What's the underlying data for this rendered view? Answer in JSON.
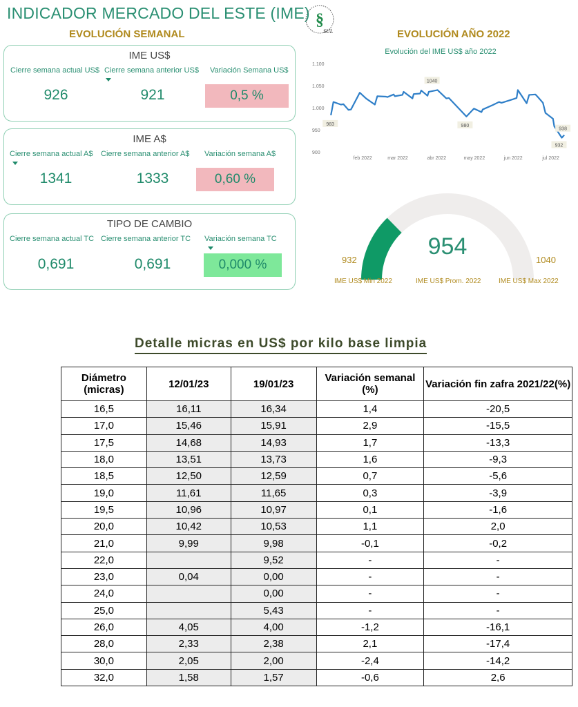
{
  "header": {
    "title": "INDICADOR MERCADO DEL ESTE (IME)",
    "weekly": "EVOLUCIÓN SEMANAL",
    "yearly": "EVOLUCIÓN AÑO  2022",
    "logo_text": "SUL"
  },
  "cards": [
    {
      "title": "IME US$",
      "labels": [
        "Cierre semana actual US$",
        "Cierre semana anterior US$",
        "Variación Semana US$"
      ],
      "current": "926",
      "previous": "921",
      "variation": "0,5 %",
      "var_color": "#f2b8bd"
    },
    {
      "title": "IME A$",
      "labels": [
        "Cierre semana actual A$",
        "Cierre semana anterior A$",
        "Variación semana A$"
      ],
      "current": "1341",
      "previous": "1333",
      "variation": "0,60 %",
      "var_color": "#f2b8bd"
    },
    {
      "title": "TIPO DE CAMBIO",
      "labels": [
        "Cierre semana actual TC",
        "Cierre semana anterior TC",
        "Variación semana TC"
      ],
      "current": "0,691",
      "previous": "0,691",
      "variation": "0,000 %",
      "var_color": "#7ee89a"
    }
  ],
  "chart_data": {
    "type": "line",
    "title": "Evolución del IME US$ año 2022",
    "ylim": [
      900,
      1100
    ],
    "yticks": [
      "900",
      "950",
      "1.000",
      "1.050",
      "1.100"
    ],
    "ytick_values": [
      900,
      950,
      1000,
      1050,
      1100
    ],
    "xticks": [
      "feb 2022",
      "mar 2022",
      "abr 2022",
      "may 2022",
      "jun 2022",
      "jul 2022"
    ],
    "xtick_days": [
      32,
      60,
      91,
      121,
      152,
      182
    ],
    "x_days": [
      10,
      12,
      18,
      20,
      24,
      26,
      33,
      38,
      45,
      47,
      54,
      55,
      60,
      61,
      67,
      68,
      75,
      76,
      81,
      82,
      87,
      88,
      95,
      102,
      104,
      118,
      124,
      130,
      131,
      139,
      144,
      146,
      155,
      158,
      159,
      166,
      168,
      173,
      175,
      179,
      181,
      187,
      188,
      194,
      196
    ],
    "y": [
      983,
      1013,
      1007,
      1008,
      995,
      996,
      1034,
      1021,
      1007,
      1026,
      1025,
      1024,
      1030,
      1026,
      1029,
      1036,
      1021,
      1031,
      1032,
      1039,
      1027,
      1036,
      1040,
      1021,
      1022,
      980,
      998,
      990,
      996,
      1006,
      1013,
      1011,
      1019,
      1022,
      1040,
      1010,
      1029,
      1030,
      1024,
      1011,
      988,
      975,
      958,
      932,
      938
    ],
    "annotations": [
      {
        "x_day": 10,
        "y": 983,
        "label": "983"
      },
      {
        "x_day": 95,
        "y": 1040,
        "label": "1040"
      },
      {
        "x_day": 118,
        "y": 980,
        "label": "980"
      },
      {
        "x_day": 194,
        "y": 932,
        "label": "932"
      },
      {
        "x_day": 196,
        "y": 938,
        "label": "938"
      }
    ],
    "line_color": "#2f7fc8"
  },
  "gauge": {
    "min": 932,
    "max": 1040,
    "value": 954,
    "min_label": "932",
    "max_label": "1040",
    "value_label": "954",
    "captions": [
      "IME US$ Min 2022",
      "IME US$ Prom. 2022",
      "IME US$ Max 2022"
    ],
    "fill_color": "#0f9a66"
  },
  "table": {
    "title": "Detalle micras en US$ por kilo base limpia",
    "headers": [
      "Diámetro (micras)",
      "12/01/23",
      "19/01/23",
      "Variación semanal (%)",
      "Variación fin zafra 2021/22(%)"
    ],
    "rows": [
      [
        "16,5",
        "16,11",
        "16,34",
        "1,4",
        "-20,5"
      ],
      [
        "17,0",
        "15,46",
        "15,91",
        "2,9",
        "-15,5"
      ],
      [
        "17,5",
        "14,68",
        "14,93",
        "1,7",
        "-13,3"
      ],
      [
        "18,0",
        "13,51",
        "13,73",
        "1,6",
        "-9,3"
      ],
      [
        "18,5",
        "12,50",
        "12,59",
        "0,7",
        "-5,6"
      ],
      [
        "19,0",
        "11,61",
        "11,65",
        "0,3",
        "-3,9"
      ],
      [
        "19,5",
        "10,96",
        "10,97",
        "0,1",
        "-1,6"
      ],
      [
        "20,0",
        "10,42",
        "10,53",
        "1,1",
        "2,0"
      ],
      [
        "21,0",
        "9,99",
        "9,98",
        "-0,1",
        "-0,2"
      ],
      [
        "22,0",
        "",
        "9,52",
        "-",
        "-"
      ],
      [
        "23,0",
        "0,04",
        "0,00",
        "-",
        "-"
      ],
      [
        "24,0",
        "",
        "0,00",
        "-",
        "-"
      ],
      [
        "25,0",
        "",
        "5,43",
        "-",
        "-"
      ],
      [
        "26,0",
        "4,05",
        "4,00",
        "-1,2",
        "-16,1"
      ],
      [
        "28,0",
        "2,33",
        "2,38",
        "2,1",
        "-17,4"
      ],
      [
        "30,0",
        "2,05",
        "2,00",
        "-2,4",
        "-14,2"
      ],
      [
        "32,0",
        "1,58",
        "1,57",
        "-0,6",
        "2,6"
      ]
    ]
  }
}
